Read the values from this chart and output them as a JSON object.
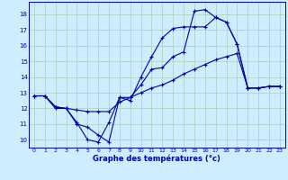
{
  "xlabel": "Graphe des températures (°c)",
  "bg_color": "#cceeff",
  "grid_color": "#aaccbb",
  "line_color": "#0000aa",
  "ylim": [
    9.5,
    18.8
  ],
  "xlim": [
    -0.5,
    23.5
  ],
  "yticks": [
    10,
    11,
    12,
    13,
    14,
    15,
    16,
    17,
    18
  ],
  "xticks": [
    0,
    1,
    2,
    3,
    4,
    5,
    6,
    7,
    8,
    9,
    10,
    11,
    12,
    13,
    14,
    15,
    16,
    17,
    18,
    19,
    20,
    21,
    22,
    23
  ],
  "series1_x": [
    0,
    1,
    2,
    3,
    4,
    5,
    6,
    7,
    8,
    9,
    10,
    11,
    12,
    13,
    14,
    15,
    16,
    17,
    18,
    19,
    20,
    21,
    22,
    23
  ],
  "series1_y": [
    12.8,
    12.8,
    12.1,
    12.0,
    11.1,
    10.0,
    9.85,
    11.1,
    12.7,
    12.7,
    13.5,
    14.5,
    14.6,
    15.3,
    15.6,
    18.2,
    18.3,
    17.8,
    17.5,
    16.1,
    13.3,
    13.3,
    13.4,
    13.4
  ],
  "series2_x": [
    0,
    1,
    2,
    3,
    4,
    5,
    6,
    7,
    8,
    9,
    10,
    11,
    12,
    13,
    14,
    15,
    16,
    17,
    18,
    19,
    20,
    21,
    22,
    23
  ],
  "series2_y": [
    12.8,
    12.8,
    12.0,
    12.0,
    11.9,
    11.8,
    11.8,
    11.8,
    12.4,
    12.7,
    13.0,
    13.3,
    13.5,
    13.8,
    14.2,
    14.5,
    14.8,
    15.1,
    15.3,
    15.5,
    13.3,
    13.3,
    13.4,
    13.4
  ],
  "series3_x": [
    0,
    1,
    2,
    3,
    4,
    5,
    6,
    7,
    8,
    9,
    10,
    11,
    12,
    13,
    14,
    15,
    16,
    17,
    18,
    19,
    20,
    21,
    22,
    23
  ],
  "series3_y": [
    12.8,
    12.8,
    12.1,
    12.0,
    11.0,
    10.8,
    10.3,
    9.85,
    12.7,
    12.5,
    14.0,
    15.3,
    16.5,
    17.1,
    17.2,
    17.2,
    17.2,
    17.8,
    17.5,
    16.1,
    13.3,
    13.3,
    13.4,
    13.4
  ]
}
